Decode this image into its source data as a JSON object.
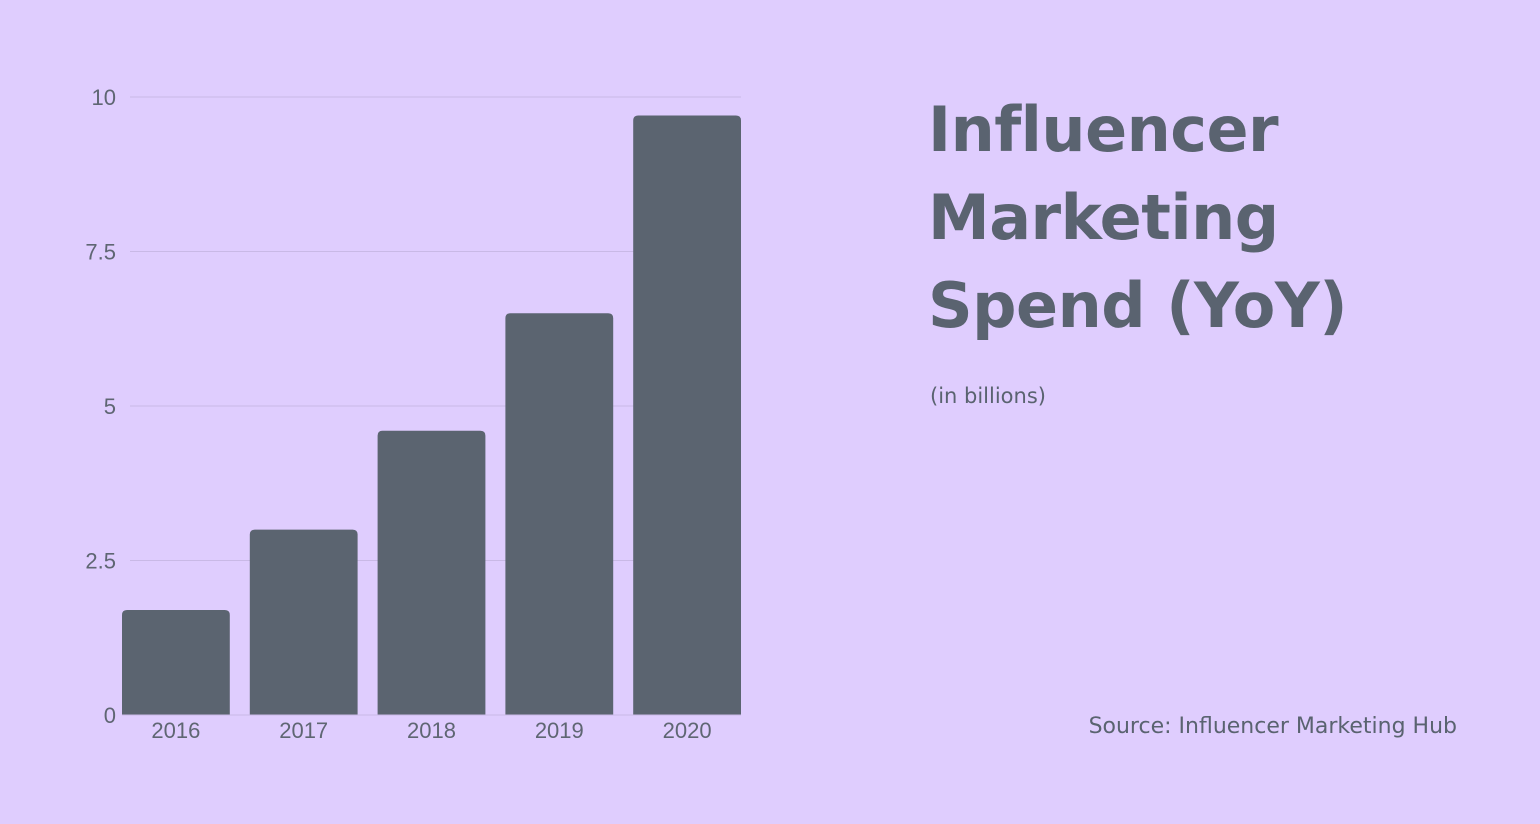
{
  "chart_data": {
    "type": "bar",
    "title": "Influencer Marketing Spend (YoY)",
    "subtitle": "(in billions)",
    "source": "Source: Influencer Marketing Hub",
    "categories": [
      "2016",
      "2017",
      "2018",
      "2019",
      "2020"
    ],
    "values": [
      1.7,
      3.0,
      4.6,
      6.5,
      9.7
    ],
    "ylim": [
      0,
      10
    ],
    "yticks": [
      0,
      2.5,
      5,
      7.5,
      10
    ],
    "ytick_labels": [
      "0",
      "2.5",
      "5",
      "7.5",
      "10"
    ],
    "xlabel": "",
    "ylabel": "",
    "grid": true,
    "legend": "none",
    "colors": {
      "bar": "#5b6470",
      "background": "#dfcdfe",
      "grid": "#c9b9e6",
      "tick_text": "#5f6673",
      "title_text": "#5a6370"
    }
  }
}
